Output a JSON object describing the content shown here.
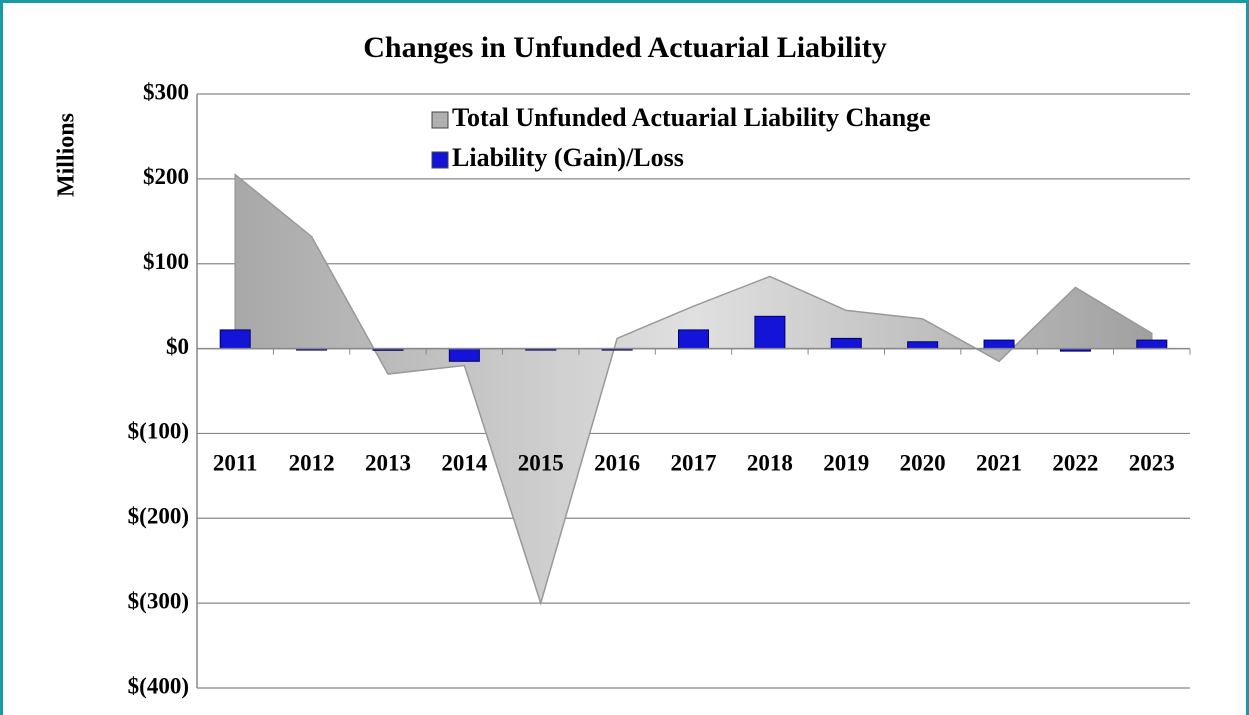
{
  "chart_data": {
    "type": "area_bar",
    "title": "Changes in Unfunded Actuarial Liability",
    "y_label": "Millions",
    "categories": [
      "2011",
      "2012",
      "2013",
      "2014",
      "2015",
      "2016",
      "2017",
      "2018",
      "2019",
      "2020",
      "2021",
      "2022",
      "2023"
    ],
    "series": [
      {
        "name": "Total Unfunded Actuarial Liability Change",
        "type": "area",
        "color": "#c4c4c4",
        "values": [
          205,
          132,
          -30,
          -20,
          -300,
          12,
          50,
          85,
          45,
          35,
          -15,
          72,
          18
        ]
      },
      {
        "name": "Liability (Gain)/Loss",
        "type": "bar",
        "color": "#1414d8",
        "values": [
          22,
          0,
          -2,
          -15,
          -1,
          0,
          22,
          38,
          12,
          8,
          10,
          -3,
          10
        ]
      }
    ],
    "ylim": [
      -400,
      300
    ],
    "yticks": [
      {
        "value": -400,
        "label": "$(400)"
      },
      {
        "value": -300,
        "label": "$(300)"
      },
      {
        "value": -200,
        "label": "$(200)"
      },
      {
        "value": -100,
        "label": "$(100)"
      },
      {
        "value": 0,
        "label": "$0"
      },
      {
        "value": 100,
        "label": "$100"
      },
      {
        "value": 200,
        "label": "$200"
      },
      {
        "value": 300,
        "label": "$300"
      }
    ],
    "grid": true
  }
}
